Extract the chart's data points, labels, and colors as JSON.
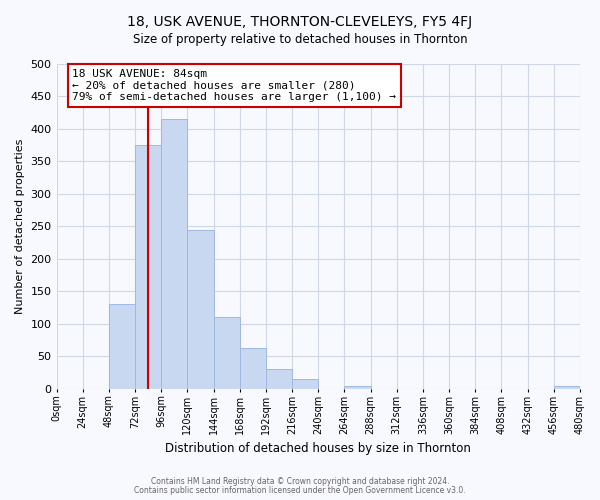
{
  "title": "18, USK AVENUE, THORNTON-CLEVELEYS, FY5 4FJ",
  "subtitle": "Size of property relative to detached houses in Thornton",
  "xlabel": "Distribution of detached houses by size in Thornton",
  "ylabel": "Number of detached properties",
  "footer_line1": "Contains HM Land Registry data © Crown copyright and database right 2024.",
  "footer_line2": "Contains public sector information licensed under the Open Government Licence v3.0.",
  "bin_edges": [
    0,
    24,
    48,
    72,
    96,
    120,
    144,
    168,
    192,
    216,
    240,
    264,
    288,
    312,
    336,
    360,
    384,
    408,
    432,
    456,
    480
  ],
  "bar_heights": [
    0,
    0,
    130,
    375,
    415,
    245,
    110,
    63,
    30,
    15,
    0,
    5,
    0,
    0,
    0,
    0,
    0,
    0,
    0,
    5
  ],
  "bar_color": "#c8d8f0",
  "bar_edge_color": "#a0b8e0",
  "property_size": 84,
  "vline_color": "#cc0000",
  "annotation_text_line1": "18 USK AVENUE: 84sqm",
  "annotation_text_line2": "← 20% of detached houses are smaller (280)",
  "annotation_text_line3": "79% of semi-detached houses are larger (1,100) →",
  "annotation_box_color": "#ffffff",
  "annotation_box_edge_color": "#cc0000",
  "ylim": [
    0,
    500
  ],
  "xlim": [
    0,
    480
  ],
  "tick_labels": [
    "0sqm",
    "24sqm",
    "48sqm",
    "72sqm",
    "96sqm",
    "120sqm",
    "144sqm",
    "168sqm",
    "192sqm",
    "216sqm",
    "240sqm",
    "264sqm",
    "288sqm",
    "312sqm",
    "336sqm",
    "360sqm",
    "384sqm",
    "408sqm",
    "432sqm",
    "456sqm",
    "480sqm"
  ],
  "background_color": "#f8f8ff",
  "grid_color": "#d0d8e8"
}
